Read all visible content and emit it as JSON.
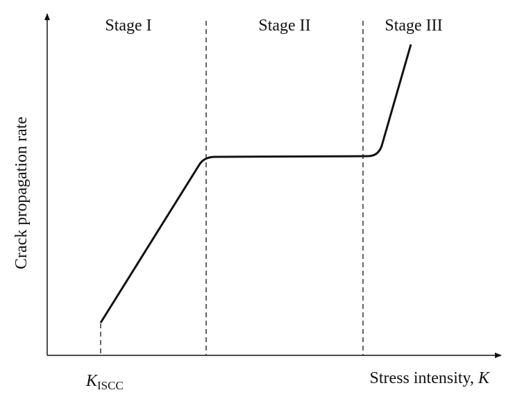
{
  "stages": [
    "Stage I",
    "Stage II",
    "Stage III"
  ],
  "y_axis_label": "Crack propagation rate",
  "x_axis_label": {
    "text": "Stress intensity,",
    "variable": "K"
  },
  "threshold_label": {
    "symbol": "K",
    "subscript": "ISCC"
  }
}
